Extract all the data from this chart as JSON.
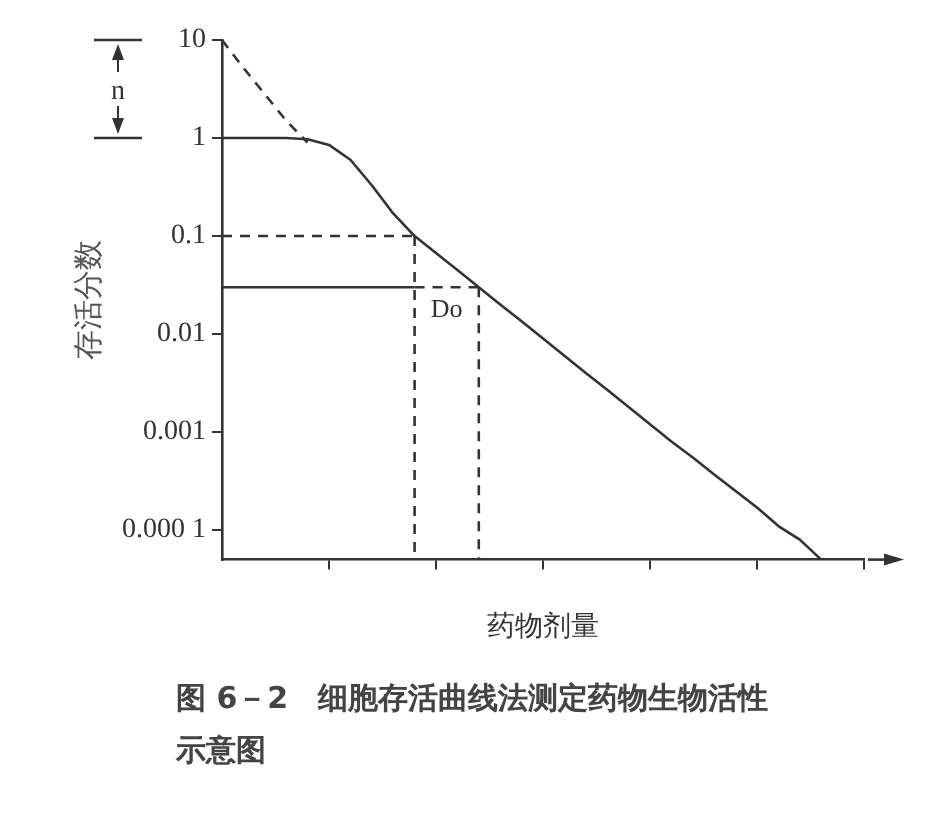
{
  "chart_data": {
    "type": "line",
    "title": "图 6－2　细胞存活曲线法测定药物生物活性示意图",
    "xlabel": "药物剂量",
    "ylabel": "存活分数",
    "categories": [
      null,
      null,
      null,
      null,
      null,
      null,
      null,
      null,
      null,
      null,
      null,
      null,
      null,
      null,
      null,
      null,
      null,
      null,
      null,
      null,
      null,
      null,
      null,
      null,
      null,
      null,
      null,
      null,
      null,
      null,
      null
    ],
    "series": [
      {
        "color": "#333333",
        "line_style": "solid",
        "values": [
          1,
          1,
          1,
          1,
          0.97,
          0.85,
          0.6,
          0.33,
          0.17,
          0.1,
          0.067,
          0.045,
          0.03,
          0.02,
          0.0135,
          0.009,
          0.006,
          0.004,
          0.0027,
          0.0018,
          0.0012,
          0.0008,
          0.00055,
          0.00037,
          0.00025,
          0.00017,
          0.00011,
          8e-05,
          5e-05,
          null,
          null
        ]
      },
      {
        "color": "#333333",
        "line_style": "dashed",
        "values": [
          10,
          5.2,
          2.8,
          1.5,
          0.9,
          null,
          null,
          null,
          null,
          null,
          null,
          null,
          null,
          null,
          null,
          null,
          null,
          null,
          null,
          null,
          null,
          null,
          null,
          null,
          null,
          null,
          null,
          null,
          null,
          null,
          null
        ]
      },
      {
        "color": "#333333",
        "line_style": "dashed",
        "values": [
          0.1,
          0.1,
          0.1,
          0.1,
          0.1,
          0.1,
          0.1,
          0.1,
          0.1,
          0.1,
          null,
          null,
          null,
          null,
          null,
          null,
          null,
          null,
          null,
          null,
          null,
          null,
          null,
          null,
          null,
          null,
          null,
          null,
          null,
          null,
          null
        ]
      },
      {
        "color": "#333333",
        "line_style": "solid",
        "values": [
          0.03,
          0.03,
          0.03,
          0.03,
          0.03,
          0.03,
          0.03,
          0.03,
          0.03,
          0.03,
          null,
          null,
          null,
          null,
          null,
          null,
          null,
          null,
          null,
          null,
          null,
          null,
          null,
          null,
          null,
          null,
          null,
          null,
          null,
          null,
          null
        ]
      },
      {
        "color": "#333333",
        "line_style": "dashed",
        "values": [
          null,
          null,
          null,
          null,
          null,
          null,
          null,
          null,
          null,
          0.03,
          0.03,
          0.03,
          0.03,
          null,
          null,
          null,
          null,
          null,
          null,
          null,
          null,
          null,
          null,
          null,
          null,
          null,
          null,
          null,
          null,
          null,
          null
        ]
      }
    ],
    "annotations": [
      "n",
      "Do"
    ],
    "ylim": [
      5e-05,
      10
    ],
    "yticks": [
      10,
      1,
      0.1,
      0.01,
      0.001,
      {
        "value": 0.0001,
        "label": "0.000 1"
      }
    ],
    "log": "y",
    "grid": false,
    "legend": false,
    "marker": "none"
  }
}
